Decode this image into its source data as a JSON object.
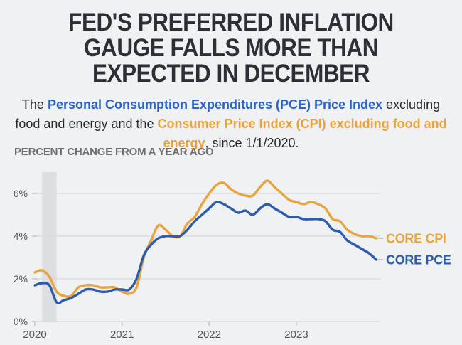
{
  "header": {
    "title_lines": [
      "FED'S PREFERRED INFLATION",
      "GAUGE FALLS MORE THAN",
      "EXPECTED IN DECEMBER"
    ],
    "subtitle_segments": [
      {
        "text": "The ",
        "style": "plain"
      },
      {
        "text": "Personal Consumption Expenditures (PCE) Price Index",
        "style": "pce"
      },
      {
        "text": " excluding food and energy and the ",
        "style": "plain"
      },
      {
        "text": "Consumer Price Index (CPI) excluding food and energy",
        "style": "cpi"
      },
      {
        "text": ", since 1/1/2020.",
        "style": "plain"
      }
    ]
  },
  "colors": {
    "background": "#eff1f3",
    "title_text": "#2c2f36",
    "subtitle_text": "#26282d",
    "subtitle_pce_blue": "#2e63c6",
    "subtitle_cpi_orange": "#e8a33c",
    "chart_heading_gray": "#6c7076",
    "axis_label": "#53565c",
    "gridline": "#d8dadd",
    "axis_tick": "#c3c6ca",
    "recession_band": "#dcdee1",
    "core_cpi_line": "#e8a43d",
    "core_pce_line": "#2e5cad"
  },
  "chart_data": {
    "type": "line",
    "title": "PERCENT CHANGE FROM A YEAR AGO",
    "x_unit": "monthly, Jan 2020 - Dec 2023",
    "x_tick_labels": [
      "2020",
      "2021",
      "2022",
      "2023"
    ],
    "x_tick_month_indices": [
      0,
      12,
      24,
      36
    ],
    "y_tick_labels": [
      "0%",
      "2%",
      "4%",
      "6%"
    ],
    "y_tick_values": [
      0,
      2,
      4,
      6
    ],
    "ylim": [
      0,
      7
    ],
    "grid": true,
    "legend_position": "right-of-line-ends",
    "recession_band_month_indices": [
      1,
      3
    ],
    "series": [
      {
        "name": "CORE CPI",
        "color": "#e8a43d",
        "values": [
          2.3,
          2.4,
          2.1,
          1.4,
          1.2,
          1.2,
          1.6,
          1.7,
          1.7,
          1.6,
          1.6,
          1.6,
          1.4,
          1.3,
          1.6,
          3.0,
          3.8,
          4.5,
          4.3,
          4.0,
          4.0,
          4.6,
          4.9,
          5.5,
          6.0,
          6.4,
          6.5,
          6.2,
          6.0,
          5.9,
          5.9,
          6.3,
          6.6,
          6.3,
          6.0,
          5.7,
          5.6,
          5.5,
          5.6,
          5.5,
          5.3,
          4.8,
          4.7,
          4.3,
          4.1,
          4.0,
          4.0,
          3.9
        ]
      },
      {
        "name": "CORE PCE",
        "color": "#2e5cad",
        "values": [
          1.7,
          1.8,
          1.7,
          0.9,
          1.0,
          1.1,
          1.3,
          1.5,
          1.5,
          1.4,
          1.4,
          1.5,
          1.5,
          1.5,
          2.0,
          3.1,
          3.6,
          3.9,
          4.0,
          4.0,
          4.0,
          4.3,
          4.7,
          5.0,
          5.3,
          5.6,
          5.5,
          5.3,
          5.1,
          5.2,
          5.0,
          5.3,
          5.5,
          5.3,
          5.1,
          4.9,
          4.9,
          4.8,
          4.8,
          4.8,
          4.7,
          4.3,
          4.2,
          3.8,
          3.6,
          3.4,
          3.2,
          2.9
        ]
      }
    ]
  }
}
